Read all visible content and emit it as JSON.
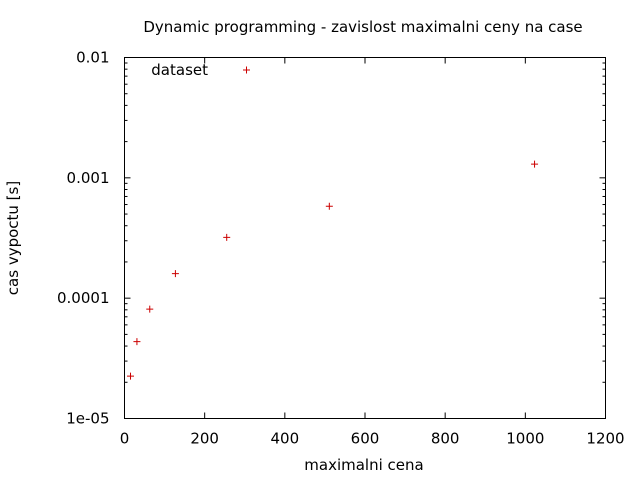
{
  "chart_data": {
    "type": "scatter",
    "title": "Dynamic programming - zavislost maximalni ceny na case",
    "xlabel": "maximalni cena",
    "ylabel": "cas vypoctu [s]",
    "xlim": [
      0,
      1200
    ],
    "ylim": [
      1e-05,
      0.01
    ],
    "y_scale": "log",
    "x_ticks": [
      "0",
      "200",
      "400",
      "600",
      "800",
      "1000",
      "1200"
    ],
    "x_tick_values": [
      0,
      200,
      400,
      600,
      800,
      1000,
      1200
    ],
    "y_ticks": [
      "1e-05",
      "0.0001",
      "0.001",
      "0.01"
    ],
    "y_tick_values": [
      1e-05,
      0.0001,
      0.001,
      0.01
    ],
    "grid": false,
    "legend_position": "top-left",
    "series": [
      {
        "name": "dataset",
        "color": "#cc0000",
        "marker": "plus",
        "x": [
          15,
          31,
          63,
          127,
          255,
          511,
          1023
        ],
        "y": [
          2.25e-05,
          4.35e-05,
          8.1e-05,
          0.00016,
          0.00032,
          0.00058,
          0.0013
        ]
      }
    ]
  }
}
